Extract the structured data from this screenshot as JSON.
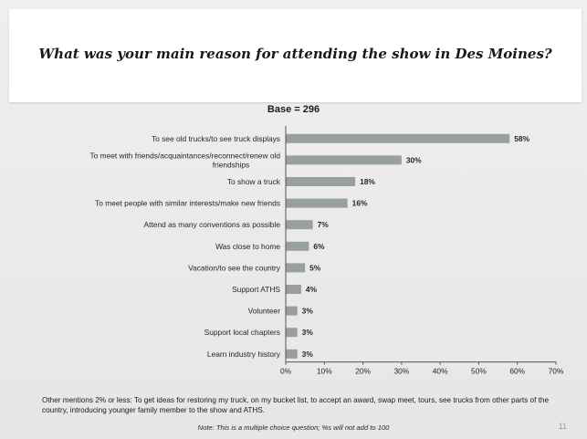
{
  "title": "What was your main reason for attending the show in Des Moines?",
  "base": "Base = 296",
  "other_mentions": "Other mentions 2% or less: To get ideas for restoring my truck, on my bucket list, to accept an award, swap meet, tours, see trucks from other parts of the country, introducing younger family member to the show and ATHS.",
  "note": "Note: This is a multiple choice question; %s will not add to 100",
  "page_number": "11",
  "colors": {
    "bar": "#98a09a",
    "axis": "#555555"
  },
  "chart_data": {
    "type": "bar",
    "orientation": "horizontal",
    "categories": [
      [
        "To see old trucks/to see truck displays"
      ],
      [
        "To meet with friends/acquaintances/reconnect/renew old",
        "friendships"
      ],
      [
        "To show a truck"
      ],
      [
        "To meet people with similar interests/make new friends"
      ],
      [
        "Attend as many conventions as possible"
      ],
      [
        "Was close to home"
      ],
      [
        "Vacation/to see the country"
      ],
      [
        "Support ATHS"
      ],
      [
        "Volunteer"
      ],
      [
        "Support local chapters"
      ],
      [
        "Learn industry history"
      ]
    ],
    "values": [
      58,
      30,
      18,
      16,
      7,
      6,
      5,
      4,
      3,
      3,
      3
    ],
    "value_labels": [
      "58%",
      "30%",
      "18%",
      "16%",
      "7%",
      "6%",
      "5%",
      "4%",
      "3%",
      "3%",
      "3%"
    ],
    "ticks": [
      0,
      10,
      20,
      30,
      40,
      50,
      60,
      70
    ],
    "tick_labels": [
      "0%",
      "10%",
      "20%",
      "30%",
      "40%",
      "50%",
      "60%",
      "70%"
    ],
    "xlim": [
      0,
      70
    ],
    "grid": false
  }
}
